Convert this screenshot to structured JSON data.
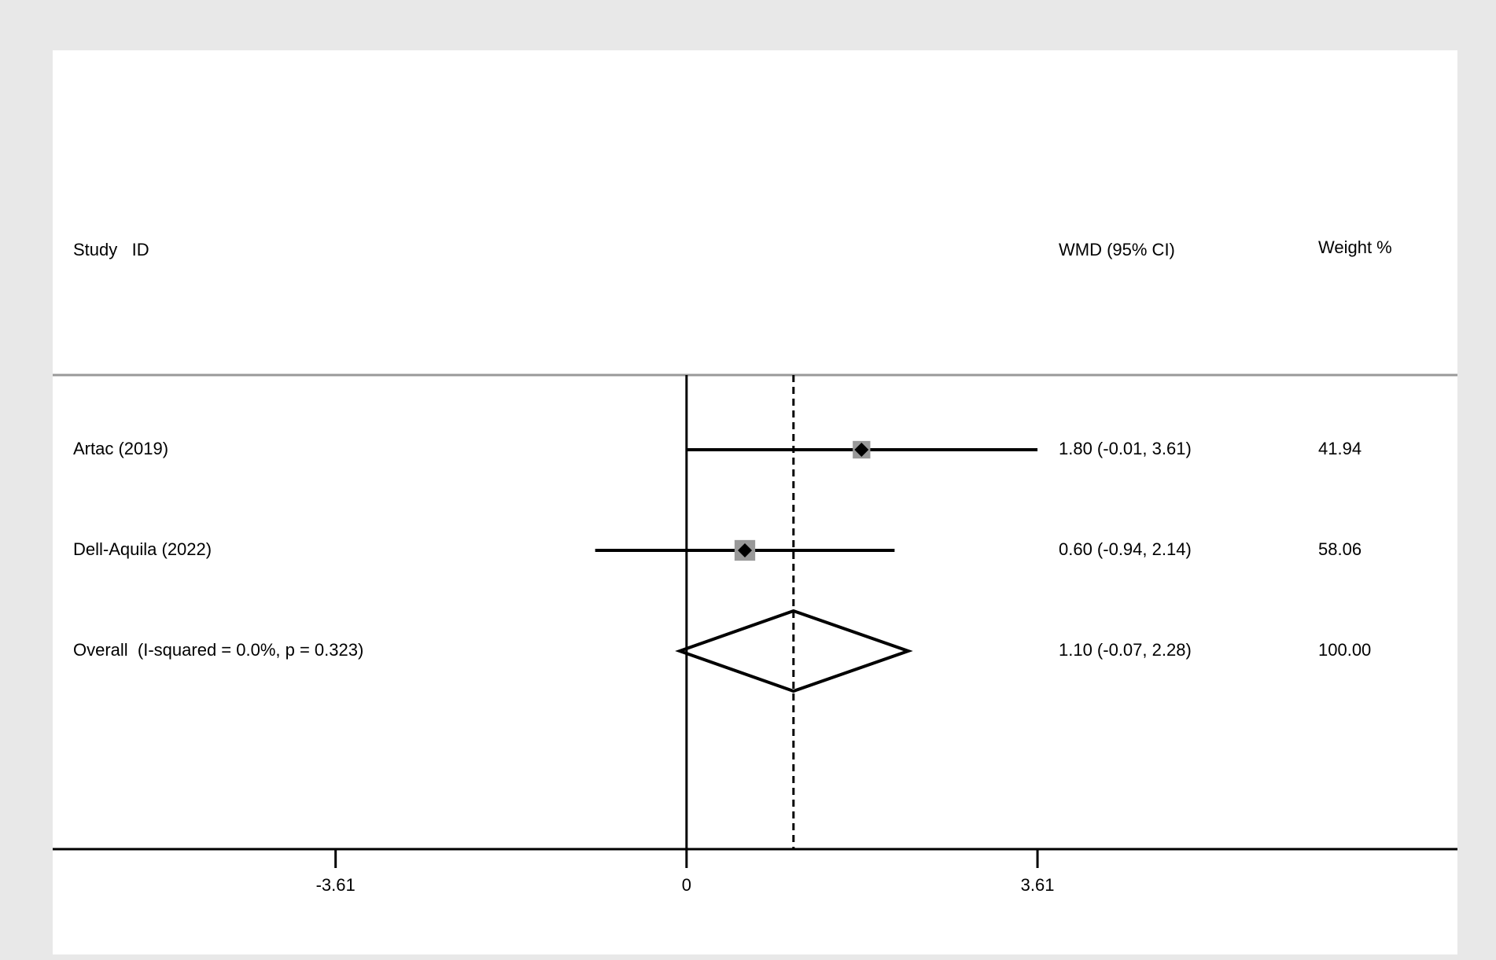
{
  "chart_data": {
    "type": "forest",
    "headers": {
      "study": "Study   ID",
      "estimate": "WMD (95% CI)",
      "weight": "Weight %"
    },
    "categories": [
      "Artac (2019)",
      "Dell-Aquila (2022)",
      "Overall  (I-squared = 0.0%, p = 0.323)"
    ],
    "row_kinds": [
      "study",
      "study",
      "overall"
    ],
    "estimates": [
      1.8,
      0.6,
      1.1
    ],
    "lowers": [
      -0.01,
      -0.94,
      -0.07
    ],
    "uppers": [
      3.61,
      2.14,
      2.28
    ],
    "value_labels": [
      "1.80 (-0.01, 3.61)",
      "0.60 (-0.94, 2.14)",
      "1.10 (-0.07, 2.28)"
    ],
    "weights": [
      41.94,
      58.06,
      100
    ],
    "weight_labels": [
      "41.94",
      "58.06",
      "100.00"
    ],
    "xlim": [
      -6.52,
      7.93
    ],
    "xticks": [
      {
        "value": -3.61,
        "label": "-3.61"
      },
      0,
      3.61
    ],
    "color": "#000000",
    "box_color": "#999999"
  }
}
